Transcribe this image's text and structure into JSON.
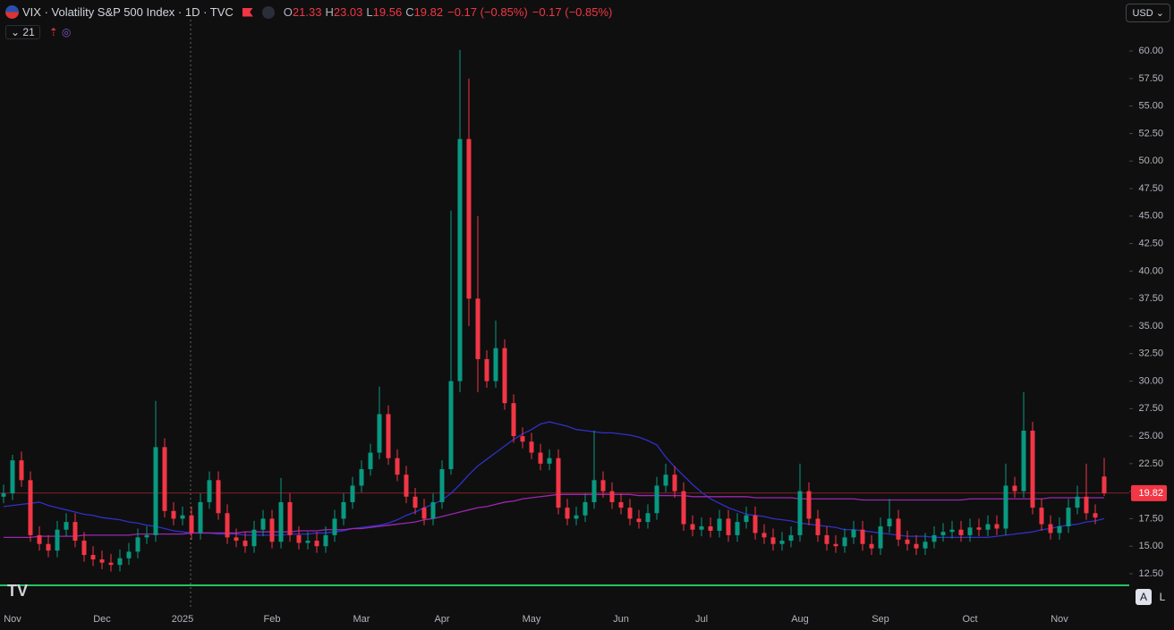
{
  "header": {
    "title": "VIX · Volatility S&P 500 Index · 1D · TVC",
    "ohlc_labels": [
      "O",
      "H",
      "L",
      "C"
    ],
    "change": "−0.17 (−0.85%)",
    "indicator_count": 21,
    "currency": "USD",
    "buttons": [
      "A",
      "L"
    ]
  },
  "chart_data": {
    "type": "candlestick",
    "up_color": "#089981",
    "down_color": "#f23645",
    "grid": false,
    "ylim": [
      11.5,
      62.2
    ],
    "yticks": [
      {
        "value": 12.5,
        "label": "12.50"
      },
      {
        "value": 15,
        "label": "15.00"
      },
      {
        "value": 17.5,
        "label": "17.50"
      },
      {
        "value": 20,
        "label": "20.00"
      },
      {
        "value": 22.5,
        "label": "22.50"
      },
      {
        "value": 25,
        "label": "25.00"
      },
      {
        "value": 27.5,
        "label": "27.50"
      },
      {
        "value": 30,
        "label": "30.00"
      },
      {
        "value": 32.5,
        "label": "32.50"
      },
      {
        "value": 35,
        "label": "35.00"
      },
      {
        "value": 37.5,
        "label": "37.50"
      },
      {
        "value": 40,
        "label": "40.00"
      },
      {
        "value": 42.5,
        "label": "42.50"
      },
      {
        "value": 45,
        "label": "45.00"
      },
      {
        "value": 47.5,
        "label": "47.50"
      },
      {
        "value": 50,
        "label": "50.00"
      },
      {
        "value": 52.5,
        "label": "52.50"
      },
      {
        "value": 55,
        "label": "55.00"
      },
      {
        "value": 57.5,
        "label": "57.50"
      },
      {
        "value": 60,
        "label": "60.00"
      }
    ],
    "categories": [
      null,
      "Nov",
      null,
      null,
      null,
      null,
      null,
      null,
      null,
      null,
      null,
      "Dec",
      null,
      null,
      null,
      null,
      null,
      null,
      null,
      null,
      "2025",
      null,
      null,
      null,
      null,
      null,
      null,
      null,
      null,
      null,
      "Feb",
      null,
      null,
      null,
      null,
      null,
      null,
      null,
      null,
      null,
      "Mar",
      null,
      null,
      null,
      null,
      null,
      null,
      null,
      null,
      "Apr",
      null,
      null,
      null,
      null,
      null,
      null,
      null,
      null,
      null,
      "May",
      null,
      null,
      null,
      null,
      null,
      null,
      null,
      null,
      null,
      "Jun",
      null,
      null,
      null,
      null,
      null,
      null,
      null,
      null,
      "Jul",
      null,
      null,
      null,
      null,
      null,
      null,
      null,
      null,
      null,
      null,
      "Aug",
      null,
      null,
      null,
      null,
      null,
      null,
      null,
      null,
      "Sep",
      null,
      null,
      null,
      null,
      null,
      null,
      null,
      null,
      null,
      "Oct",
      null,
      null,
      null,
      null,
      null,
      null,
      null,
      null,
      null,
      "Nov",
      null,
      null,
      null,
      null,
      null
    ],
    "open": [
      19.5,
      19.8,
      22.8,
      21.0,
      16.0,
      15.2,
      14.6,
      16.5,
      17.2,
      15.5,
      14.2,
      13.8,
      13.5,
      13.3,
      13.9,
      14.5,
      15.8,
      16.0,
      24.0,
      18.2,
      17.5,
      17.8,
      16.2,
      19.0,
      21.0,
      18.0,
      15.8,
      15.5,
      15.0,
      16.5,
      17.5,
      15.4,
      19.0,
      16.0,
      15.3,
      15.5,
      15.0,
      16.0,
      17.5,
      19.0,
      20.5,
      22.0,
      23.5,
      27.0,
      23.0,
      21.5,
      19.5,
      18.5,
      17.5,
      19.0,
      22.0,
      30.0,
      52.0,
      37.5,
      32.0,
      30.0,
      33.0,
      28.0,
      25.0,
      24.5,
      23.5,
      22.5,
      23.0,
      18.5,
      17.5,
      17.8,
      19.0,
      21.0,
      20.0,
      19.0,
      18.5,
      17.5,
      17.2,
      18.0,
      20.5,
      21.5,
      20.0,
      17.0,
      16.5,
      16.8,
      16.4,
      17.5,
      16.0,
      17.2,
      17.8,
      16.2,
      15.8,
      15.2,
      15.5,
      16.0,
      20.0,
      17.5,
      16.0,
      15.2,
      15.0,
      15.8,
      16.5,
      15.2,
      14.8,
      16.8,
      17.5,
      15.6,
      15.2,
      14.8,
      15.4,
      16.0,
      16.3,
      16.5,
      16.0,
      16.7,
      16.5,
      17.0,
      16.6,
      20.5,
      20.0,
      25.5,
      18.5,
      17.0,
      16.2,
      16.8,
      18.5,
      19.5,
      18.0,
      21.33
    ],
    "high": [
      20.6,
      23.3,
      23.6,
      21.8,
      16.8,
      16.0,
      17.3,
      18.0,
      18.0,
      16.3,
      15.0,
      14.6,
      14.3,
      14.7,
      15.3,
      16.6,
      16.8,
      28.2,
      24.8,
      19.0,
      18.6,
      18.6,
      19.8,
      21.8,
      21.8,
      18.8,
      16.6,
      16.3,
      17.3,
      18.3,
      18.3,
      21.2,
      19.8,
      16.8,
      16.3,
      16.3,
      16.8,
      18.3,
      19.8,
      21.3,
      22.8,
      24.3,
      29.5,
      27.8,
      23.8,
      22.3,
      20.3,
      19.3,
      19.8,
      22.8,
      45.5,
      60.1,
      57.5,
      45.0,
      32.8,
      35.5,
      33.8,
      28.8,
      25.8,
      25.3,
      24.3,
      23.8,
      23.8,
      19.3,
      18.6,
      19.8,
      25.5,
      21.8,
      20.8,
      19.8,
      19.3,
      18.3,
      18.8,
      21.3,
      22.5,
      22.3,
      20.8,
      17.8,
      17.6,
      17.6,
      18.3,
      18.3,
      18.0,
      18.6,
      18.6,
      17.0,
      16.6,
      16.3,
      16.8,
      22.5,
      20.8,
      18.3,
      16.8,
      16.0,
      16.6,
      17.3,
      17.3,
      16.0,
      17.6,
      19.3,
      18.3,
      16.4,
      16.0,
      16.2,
      16.8,
      17.1,
      17.3,
      17.3,
      17.5,
      17.5,
      17.8,
      17.8,
      22.5,
      21.3,
      29.0,
      26.3,
      19.3,
      17.8,
      17.6,
      19.3,
      20.5,
      22.5,
      18.8,
      23.03
    ],
    "low": [
      18.9,
      19.2,
      20.4,
      15.4,
      14.6,
      14.0,
      14.0,
      15.9,
      14.9,
      13.6,
      13.2,
      12.9,
      12.7,
      12.7,
      13.3,
      13.9,
      15.2,
      15.4,
      17.6,
      16.9,
      16.9,
      15.6,
      15.6,
      18.4,
      17.4,
      15.2,
      14.9,
      14.4,
      14.4,
      15.9,
      14.8,
      14.8,
      15.4,
      14.7,
      14.7,
      14.4,
      14.4,
      15.4,
      16.9,
      18.4,
      19.9,
      21.4,
      22.9,
      22.4,
      20.9,
      18.9,
      17.9,
      16.9,
      16.9,
      18.4,
      21.5,
      29.0,
      35.0,
      29.0,
      29.4,
      29.4,
      27.4,
      24.4,
      23.9,
      22.9,
      21.9,
      21.9,
      17.9,
      16.9,
      16.9,
      17.2,
      18.4,
      19.4,
      18.4,
      17.9,
      16.9,
      16.6,
      16.6,
      17.4,
      19.9,
      19.4,
      16.4,
      15.9,
      15.9,
      15.8,
      15.8,
      15.4,
      15.4,
      16.6,
      15.6,
      15.2,
      14.6,
      14.6,
      14.9,
      15.4,
      16.9,
      15.4,
      14.6,
      14.4,
      14.4,
      15.2,
      14.6,
      14.2,
      14.2,
      16.2,
      15.0,
      14.6,
      14.2,
      14.2,
      14.8,
      15.4,
      15.7,
      15.4,
      15.4,
      15.9,
      15.9,
      16.0,
      16.0,
      19.4,
      19.4,
      17.9,
      16.4,
      15.6,
      15.6,
      16.2,
      17.9,
      17.4,
      17.0,
      19.56
    ],
    "close": [
      19.8,
      22.8,
      21.0,
      16.0,
      15.2,
      14.6,
      16.5,
      17.2,
      15.5,
      14.2,
      13.8,
      13.5,
      13.3,
      13.9,
      14.5,
      15.8,
      16.0,
      24.0,
      18.2,
      17.5,
      17.8,
      16.2,
      19.0,
      21.0,
      18.0,
      15.8,
      15.5,
      15.0,
      16.5,
      17.5,
      15.4,
      19.0,
      16.0,
      15.3,
      15.5,
      15.0,
      16.0,
      17.5,
      19.0,
      20.5,
      22.0,
      23.5,
      27.0,
      23.0,
      21.5,
      19.5,
      18.5,
      17.5,
      19.0,
      22.0,
      30.0,
      52.0,
      37.5,
      32.0,
      30.0,
      33.0,
      28.0,
      25.0,
      24.5,
      23.5,
      22.5,
      23.0,
      18.5,
      17.5,
      17.8,
      19.0,
      21.0,
      20.0,
      19.0,
      18.5,
      17.5,
      17.2,
      18.0,
      20.5,
      21.5,
      20.0,
      17.0,
      16.5,
      16.8,
      16.4,
      17.5,
      16.0,
      17.2,
      17.8,
      16.2,
      15.8,
      15.2,
      15.5,
      16.0,
      20.0,
      17.5,
      16.0,
      15.2,
      15.0,
      15.8,
      16.5,
      15.2,
      14.8,
      16.8,
      17.5,
      15.6,
      15.2,
      14.8,
      15.4,
      16.0,
      16.3,
      16.5,
      16.0,
      16.7,
      16.5,
      17.0,
      16.6,
      20.5,
      20.0,
      25.5,
      18.5,
      17.0,
      16.2,
      16.8,
      18.5,
      19.5,
      18.0,
      17.6,
      19.82
    ],
    "lines": [
      {
        "color": "#3030c8",
        "values": [
          18.6,
          18.7,
          18.8,
          18.9,
          19.0,
          18.7,
          18.5,
          18.3,
          18.1,
          17.9,
          17.8,
          17.6,
          17.5,
          17.4,
          17.2,
          17.1,
          16.9,
          16.8,
          16.6,
          16.4,
          16.3,
          16.2,
          16.2,
          16.2,
          16.1,
          16.1,
          16.1,
          16.0,
          16.0,
          16.0,
          16.0,
          16.0,
          16.1,
          16.1,
          16.1,
          16.2,
          16.2,
          16.3,
          16.4,
          16.6,
          16.7,
          16.8,
          16.9,
          17.1,
          17.4,
          17.8,
          18.1,
          18.5,
          18.8,
          19.2,
          19.8,
          20.6,
          21.5,
          22.3,
          22.9,
          23.5,
          24.1,
          24.7,
          25.2,
          25.6,
          26.1,
          26.3,
          26.1,
          25.9,
          25.6,
          25.5,
          25.4,
          25.3,
          25.3,
          25.2,
          25.1,
          24.9,
          24.6,
          24.2,
          23.1,
          22.2,
          21.4,
          20.6,
          19.9,
          19.3,
          18.9,
          18.5,
          18.2,
          17.9,
          17.8,
          17.7,
          17.5,
          17.4,
          17.3,
          17.1,
          17.0,
          16.9,
          16.8,
          16.7,
          16.5,
          16.5,
          16.4,
          16.3,
          16.2,
          16.1,
          16.0,
          15.9,
          15.9,
          15.9,
          15.8,
          15.8,
          15.8,
          15.8,
          15.8,
          15.8,
          15.8,
          15.9,
          16.0,
          16.1,
          16.2,
          16.3,
          16.5,
          16.6,
          16.8,
          16.9,
          17.0,
          17.2,
          17.3,
          17.5
        ]
      },
      {
        "color": "#9c27b0",
        "values": [
          15.8,
          15.8,
          15.8,
          15.8,
          15.9,
          15.9,
          15.9,
          15.9,
          15.9,
          16.0,
          16.0,
          16.0,
          16.0,
          16.0,
          16.0,
          16.1,
          16.1,
          16.1,
          16.1,
          16.1,
          16.1,
          16.2,
          16.2,
          16.2,
          16.2,
          16.2,
          16.2,
          16.3,
          16.3,
          16.3,
          16.3,
          16.3,
          16.3,
          16.4,
          16.4,
          16.4,
          16.5,
          16.5,
          16.5,
          16.6,
          16.6,
          16.7,
          16.8,
          16.9,
          17.0,
          17.1,
          17.2,
          17.4,
          17.5,
          17.7,
          17.9,
          18.1,
          18.3,
          18.5,
          18.6,
          18.8,
          19.0,
          19.1,
          19.3,
          19.4,
          19.5,
          19.6,
          19.7,
          19.7,
          19.7,
          19.7,
          19.7,
          19.7,
          19.7,
          19.7,
          19.7,
          19.6,
          19.6,
          19.6,
          19.6,
          19.6,
          19.6,
          19.5,
          19.5,
          19.5,
          19.5,
          19.5,
          19.5,
          19.5,
          19.4,
          19.4,
          19.4,
          19.4,
          19.4,
          19.3,
          19.3,
          19.3,
          19.3,
          19.3,
          19.3,
          19.3,
          19.2,
          19.2,
          19.2,
          19.2,
          19.2,
          19.2,
          19.2,
          19.2,
          19.2,
          19.2,
          19.2,
          19.2,
          19.3,
          19.3,
          19.3,
          19.3,
          19.3,
          19.3,
          19.3,
          19.3,
          19.3,
          19.4,
          19.4,
          19.4,
          19.4,
          19.4,
          19.4,
          19.4
        ]
      }
    ]
  }
}
